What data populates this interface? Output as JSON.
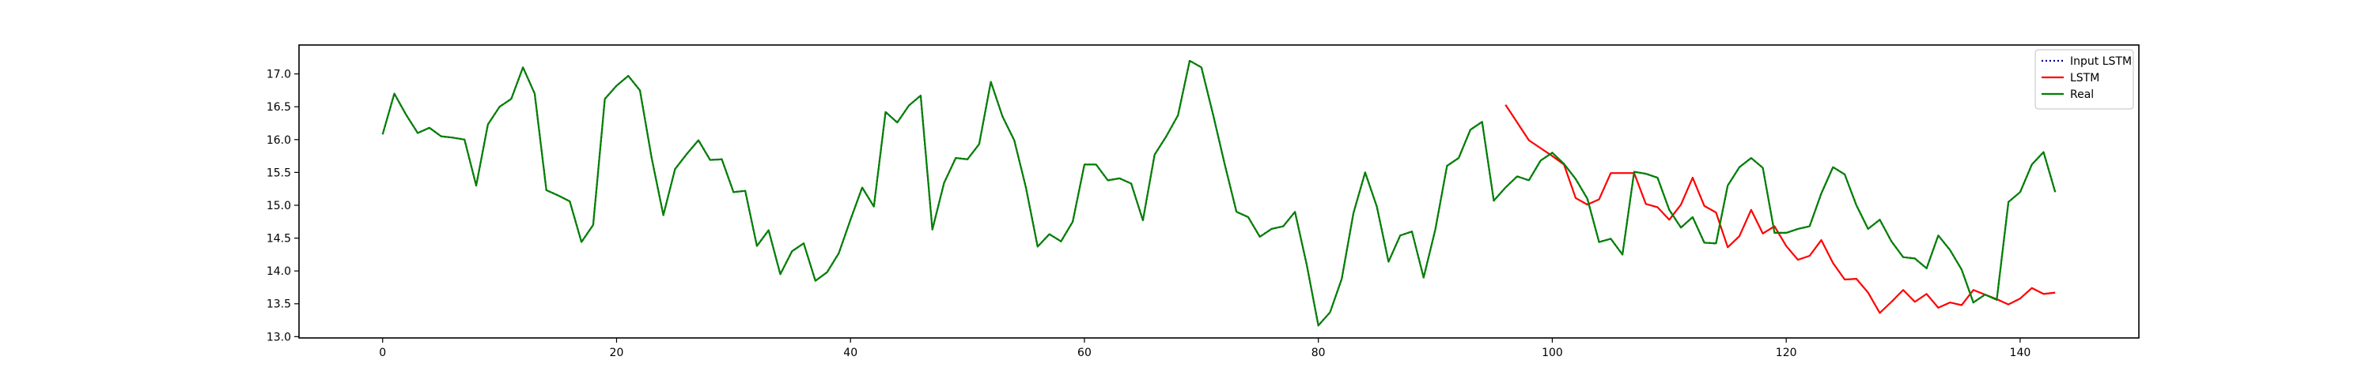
{
  "chart_data": {
    "type": "line",
    "title": "",
    "xlabel": "",
    "ylabel": "",
    "xlim": [
      -7.15,
      150.15
    ],
    "ylim": [
      12.98,
      17.44
    ],
    "xticks": [
      0,
      20,
      40,
      60,
      80,
      100,
      120,
      140
    ],
    "yticks": [
      13.0,
      13.5,
      14.0,
      14.5,
      15.0,
      15.5,
      16.0,
      16.5,
      17.0
    ],
    "grid": false,
    "legend_position": "top-right",
    "series": [
      {
        "name": "Input LSTM",
        "color": "#00008b",
        "style": "dotted",
        "x_start": 0,
        "values": [
          16.08,
          16.7,
          16.38,
          16.1,
          16.18,
          16.05,
          16.03,
          16.0,
          15.3,
          16.23,
          16.5,
          16.62,
          17.1,
          16.7,
          15.23,
          15.15,
          15.06,
          14.44,
          14.7,
          16.62,
          16.82,
          16.97,
          16.75,
          15.72,
          14.85,
          15.55,
          15.78,
          15.99,
          15.69,
          15.7,
          15.2,
          15.22,
          14.38,
          14.62,
          13.95,
          14.3,
          14.42,
          13.85,
          13.98,
          14.27,
          14.78,
          15.27,
          14.98,
          16.42,
          16.26,
          16.52,
          16.67,
          14.63,
          15.34,
          15.72,
          15.7,
          15.93,
          16.88,
          16.35,
          15.99,
          15.27,
          14.37,
          14.56,
          14.45,
          14.75,
          15.62,
          15.62,
          15.38,
          15.41,
          15.33,
          14.77,
          15.77,
          16.05,
          16.37,
          17.2,
          17.1,
          16.38,
          15.62,
          14.9,
          14.82,
          14.52,
          14.64,
          14.68,
          14.9,
          14.1,
          13.17,
          13.37,
          13.88,
          14.88,
          15.5,
          14.98,
          14.14,
          14.54,
          14.6,
          13.9,
          14.63,
          15.6,
          15.72,
          16.15,
          16.27,
          15.07,
          15.27,
          15.44,
          15.38,
          15.68,
          15.8,
          15.63,
          15.4,
          15.1,
          14.44,
          14.49,
          14.25,
          15.51,
          15.48,
          15.42,
          14.93,
          14.66,
          14.82,
          14.43,
          14.42,
          15.3,
          15.58,
          15.72,
          15.57,
          14.58,
          14.58,
          14.64,
          14.68,
          15.18,
          15.58,
          15.47,
          15.0,
          14.64,
          14.78,
          14.45,
          14.21,
          14.19,
          14.04,
          14.54,
          14.32,
          14.02,
          13.52,
          13.64,
          13.56,
          15.05,
          15.2,
          15.62,
          15.81,
          15.2
        ]
      },
      {
        "name": "LSTM",
        "color": "#ff0000",
        "style": "solid",
        "x_start": 96,
        "values": [
          16.53,
          16.26,
          15.99,
          15.87,
          15.75,
          15.62,
          15.11,
          15.01,
          15.09,
          15.49,
          15.49,
          15.49,
          15.02,
          14.97,
          14.78,
          15.01,
          15.42,
          14.99,
          14.89,
          14.36,
          14.53,
          14.93,
          14.57,
          14.68,
          14.38,
          14.17,
          14.23,
          14.47,
          14.12,
          13.87,
          13.88,
          13.67,
          13.36,
          13.53,
          13.71,
          13.53,
          13.65,
          13.44,
          13.52,
          13.48,
          13.71,
          13.64,
          13.57,
          13.49,
          13.58,
          13.74,
          13.65,
          13.67
        ]
      },
      {
        "name": "Real",
        "color": "#008000",
        "style": "solid",
        "x_start": 0,
        "values": [
          16.08,
          16.7,
          16.38,
          16.1,
          16.18,
          16.05,
          16.03,
          16.0,
          15.3,
          16.23,
          16.5,
          16.62,
          17.1,
          16.7,
          15.23,
          15.15,
          15.06,
          14.44,
          14.7,
          16.62,
          16.82,
          16.97,
          16.75,
          15.72,
          14.85,
          15.55,
          15.78,
          15.99,
          15.69,
          15.7,
          15.2,
          15.22,
          14.38,
          14.62,
          13.95,
          14.3,
          14.42,
          13.85,
          13.98,
          14.27,
          14.78,
          15.27,
          14.98,
          16.42,
          16.26,
          16.52,
          16.67,
          14.63,
          15.34,
          15.72,
          15.7,
          15.93,
          16.88,
          16.35,
          15.99,
          15.27,
          14.37,
          14.56,
          14.45,
          14.75,
          15.62,
          15.62,
          15.38,
          15.41,
          15.33,
          14.77,
          15.77,
          16.05,
          16.37,
          17.2,
          17.1,
          16.38,
          15.62,
          14.9,
          14.82,
          14.52,
          14.64,
          14.68,
          14.9,
          14.1,
          13.17,
          13.37,
          13.88,
          14.88,
          15.5,
          14.98,
          14.14,
          14.54,
          14.6,
          13.9,
          14.63,
          15.6,
          15.72,
          16.15,
          16.27,
          15.07,
          15.27,
          15.44,
          15.38,
          15.68,
          15.8,
          15.63,
          15.4,
          15.1,
          14.44,
          14.49,
          14.25,
          15.51,
          15.48,
          15.42,
          14.93,
          14.66,
          14.82,
          14.43,
          14.42,
          15.3,
          15.58,
          15.72,
          15.57,
          14.58,
          14.58,
          14.64,
          14.68,
          15.18,
          15.58,
          15.47,
          15.0,
          14.64,
          14.78,
          14.45,
          14.21,
          14.19,
          14.04,
          14.54,
          14.32,
          14.02,
          13.52,
          13.64,
          13.56,
          15.05,
          15.2,
          15.62,
          15.81,
          15.2
        ]
      }
    ]
  }
}
